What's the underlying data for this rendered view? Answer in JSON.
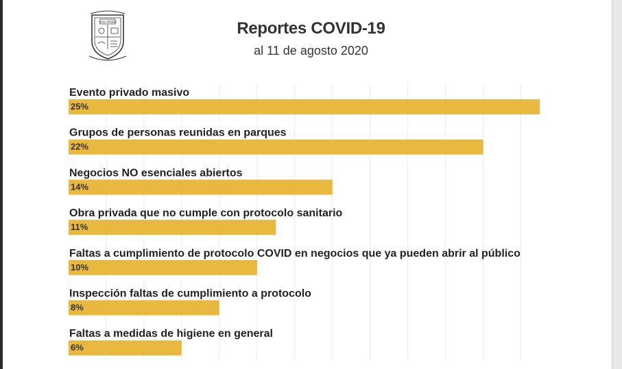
{
  "header": {
    "title": "Reportes COVID-19",
    "subtitle": "al 11 de agosto 2020",
    "logo_icon": "municipal-coat-of-arms",
    "logo_text": "CON ORDEN"
  },
  "chart_data": {
    "type": "bar",
    "orientation": "horizontal",
    "title": "Reportes COVID-19",
    "subtitle": "al 11 de agosto 2020",
    "categories": [
      "Evento privado masivo",
      "Grupos de personas reunidas en parques",
      "Negocios NO esenciales abiertos",
      "Obra privada que no cumple con protocolo sanitario",
      "Faltas a cumplimiento de protocolo COVID en negocios que ya pueden abrir al público",
      "Inspección faltas de cumplimiento a protocolo",
      "Faltas a medidas de higiene en general"
    ],
    "values": [
      25,
      22,
      14,
      11,
      10,
      8,
      6
    ],
    "value_labels": [
      "25%",
      "22%",
      "14%",
      "11%",
      "10%",
      "8%",
      "6%"
    ],
    "unit": "%",
    "xlim": [
      0,
      25
    ],
    "grid": true,
    "bar_color": "#E8B93E",
    "grid_color": "#EBEBEB"
  }
}
